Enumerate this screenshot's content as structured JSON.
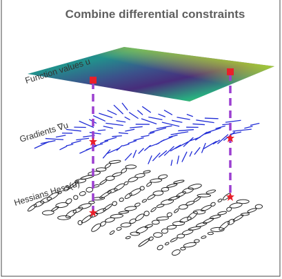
{
  "title": "Combine differential constraints",
  "layers": [
    {
      "label": "Function values u"
    },
    {
      "label": "Gradients ∇u"
    },
    {
      "label": "Hessians Hess(u)"
    }
  ]
}
